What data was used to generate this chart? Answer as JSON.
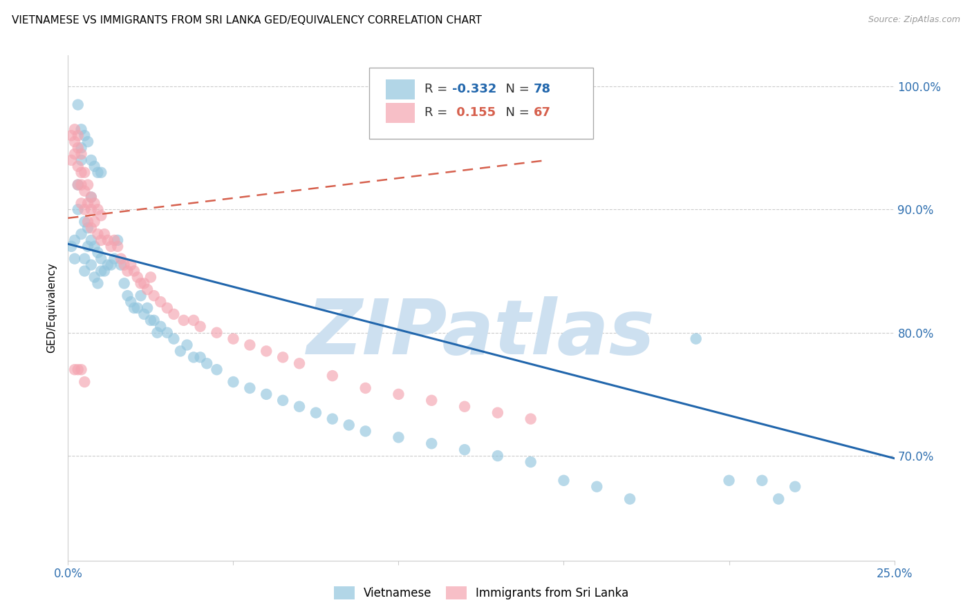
{
  "title": "VIETNAMESE VS IMMIGRANTS FROM SRI LANKA GED/EQUIVALENCY CORRELATION CHART",
  "source": "Source: ZipAtlas.com",
  "ylabel": "GED/Equivalency",
  "ytick_labels": [
    "70.0%",
    "80.0%",
    "90.0%",
    "100.0%"
  ],
  "ytick_values": [
    0.7,
    0.8,
    0.9,
    1.0
  ],
  "xlim": [
    0.0,
    0.25
  ],
  "ylim": [
    0.615,
    1.025
  ],
  "legend_label_blue": "Vietnamese",
  "legend_label_pink": "Immigrants from Sri Lanka",
  "blue_color": "#92c5de",
  "pink_color": "#f4a4b0",
  "blue_line_color": "#2166ac",
  "pink_line_color": "#d6604d",
  "watermark": "ZIPatlas",
  "watermark_color": "#cde0f0",
  "title_fontsize": 11,
  "source_fontsize": 9,
  "blue_trend_x": [
    0.0,
    0.25
  ],
  "blue_trend_y": [
    0.872,
    0.698
  ],
  "pink_trend_x": [
    0.0,
    0.145
  ],
  "pink_trend_y": [
    0.893,
    0.94
  ],
  "grid_color": "#cccccc",
  "grid_style": "--",
  "blue_x": [
    0.001,
    0.002,
    0.002,
    0.003,
    0.003,
    0.004,
    0.004,
    0.004,
    0.005,
    0.005,
    0.005,
    0.006,
    0.006,
    0.007,
    0.007,
    0.007,
    0.008,
    0.008,
    0.009,
    0.009,
    0.01,
    0.01,
    0.011,
    0.012,
    0.013,
    0.014,
    0.015,
    0.016,
    0.017,
    0.018,
    0.019,
    0.02,
    0.021,
    0.022,
    0.023,
    0.024,
    0.025,
    0.026,
    0.027,
    0.028,
    0.03,
    0.032,
    0.034,
    0.036,
    0.038,
    0.04,
    0.042,
    0.045,
    0.05,
    0.055,
    0.06,
    0.065,
    0.07,
    0.075,
    0.08,
    0.085,
    0.09,
    0.1,
    0.11,
    0.12,
    0.13,
    0.14,
    0.15,
    0.16,
    0.17,
    0.19,
    0.2,
    0.21,
    0.22,
    0.003,
    0.004,
    0.005,
    0.006,
    0.007,
    0.008,
    0.009,
    0.01,
    0.215
  ],
  "blue_y": [
    0.87,
    0.875,
    0.86,
    0.9,
    0.92,
    0.95,
    0.94,
    0.88,
    0.89,
    0.86,
    0.85,
    0.885,
    0.87,
    0.875,
    0.91,
    0.855,
    0.87,
    0.845,
    0.865,
    0.84,
    0.86,
    0.85,
    0.85,
    0.855,
    0.855,
    0.86,
    0.875,
    0.855,
    0.84,
    0.83,
    0.825,
    0.82,
    0.82,
    0.83,
    0.815,
    0.82,
    0.81,
    0.81,
    0.8,
    0.805,
    0.8,
    0.795,
    0.785,
    0.79,
    0.78,
    0.78,
    0.775,
    0.77,
    0.76,
    0.755,
    0.75,
    0.745,
    0.74,
    0.735,
    0.73,
    0.725,
    0.72,
    0.715,
    0.71,
    0.705,
    0.7,
    0.695,
    0.68,
    0.675,
    0.665,
    0.795,
    0.68,
    0.68,
    0.675,
    0.985,
    0.965,
    0.96,
    0.955,
    0.94,
    0.935,
    0.93,
    0.93,
    0.665
  ],
  "pink_x": [
    0.001,
    0.001,
    0.002,
    0.002,
    0.002,
    0.003,
    0.003,
    0.003,
    0.003,
    0.004,
    0.004,
    0.004,
    0.004,
    0.005,
    0.005,
    0.005,
    0.006,
    0.006,
    0.006,
    0.007,
    0.007,
    0.007,
    0.008,
    0.008,
    0.009,
    0.009,
    0.01,
    0.01,
    0.011,
    0.012,
    0.013,
    0.014,
    0.015,
    0.016,
    0.017,
    0.018,
    0.019,
    0.02,
    0.021,
    0.022,
    0.023,
    0.024,
    0.025,
    0.026,
    0.028,
    0.03,
    0.032,
    0.035,
    0.038,
    0.04,
    0.045,
    0.05,
    0.055,
    0.06,
    0.065,
    0.07,
    0.08,
    0.09,
    0.1,
    0.11,
    0.12,
    0.13,
    0.14,
    0.002,
    0.003,
    0.004,
    0.005
  ],
  "pink_y": [
    0.96,
    0.94,
    0.965,
    0.955,
    0.945,
    0.96,
    0.95,
    0.935,
    0.92,
    0.945,
    0.93,
    0.92,
    0.905,
    0.93,
    0.915,
    0.9,
    0.92,
    0.905,
    0.89,
    0.91,
    0.9,
    0.885,
    0.905,
    0.89,
    0.9,
    0.88,
    0.895,
    0.875,
    0.88,
    0.875,
    0.87,
    0.875,
    0.87,
    0.86,
    0.855,
    0.85,
    0.855,
    0.85,
    0.845,
    0.84,
    0.84,
    0.835,
    0.845,
    0.83,
    0.825,
    0.82,
    0.815,
    0.81,
    0.81,
    0.805,
    0.8,
    0.795,
    0.79,
    0.785,
    0.78,
    0.775,
    0.765,
    0.755,
    0.75,
    0.745,
    0.74,
    0.735,
    0.73,
    0.77,
    0.77,
    0.77,
    0.76
  ]
}
